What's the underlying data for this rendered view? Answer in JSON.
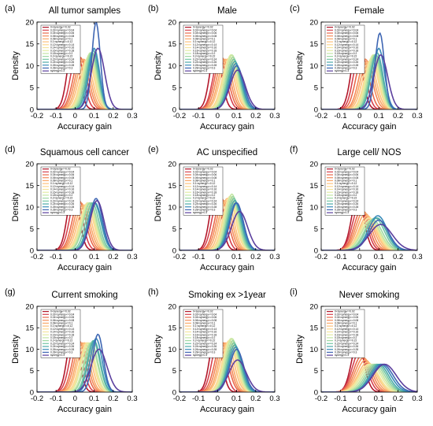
{
  "figure": {
    "background": "#ffffff"
  },
  "panel_letters": [
    "(a)",
    "(b)",
    "(c)",
    "(d)",
    "(e)",
    "(f)",
    "(g)",
    "(h)",
    "(i)"
  ],
  "legend_entries": [
    "0<synergy<=0.02",
    "0.02<synergy<=0.04",
    "0.04<synergy<=0.06",
    "0.06<synergy<=0.08",
    "0.08<synergy<=0.1",
    "0.1<synergy<=0.12",
    "0.12<synergy<=0.14",
    "0.14<synergy<=0.16",
    "0.16<synergy<=0.18",
    "0.18<synergy<=0.2",
    "0.2<synergy<=0.22",
    "0.22<synergy<=0.24",
    "0.24<synergy<=0.26",
    "0.26<synergy<=0.28",
    "0.28<synergy<=0.3",
    "synergy>0.3"
  ],
  "series_colors": [
    "#b2182b",
    "#d6404e",
    "#e96a4d",
    "#f48c5a",
    "#f9a869",
    "#fdc07b",
    "#fed790",
    "#f4e49c",
    "#e2eba3",
    "#c3e6a4",
    "#9fd8a4",
    "#74c6a5",
    "#4daaa8",
    "#3a8cba",
    "#3e66b3",
    "#5b3f9e"
  ],
  "chart_data": [
    {
      "type": "line",
      "title": "All tumor samples",
      "xlabel": "Accuracy gain",
      "ylabel": "Density",
      "xlim": [
        -0.2,
        0.3
      ],
      "ylim": [
        0,
        20
      ],
      "xticks": [
        "-0.2",
        "-0.1",
        "0",
        "0.1",
        "0.2",
        "0.3"
      ],
      "yticks": [
        "0",
        "5",
        "10",
        "15",
        "20"
      ],
      "legend": "top-left",
      "grid": false,
      "series": [
        {
          "peak_x": -0.01,
          "peak_y": 15,
          "width": 0.03
        },
        {
          "peak_x": 0.01,
          "peak_y": 13,
          "width": 0.033
        },
        {
          "peak_x": 0.025,
          "peak_y": 12,
          "width": 0.035
        },
        {
          "peak_x": 0.035,
          "peak_y": 11.5,
          "width": 0.036
        },
        {
          "peak_x": 0.045,
          "peak_y": 11.5,
          "width": 0.036
        },
        {
          "peak_x": 0.055,
          "peak_y": 11,
          "width": 0.037
        },
        {
          "peak_x": 0.065,
          "peak_y": 11.5,
          "width": 0.036
        },
        {
          "peak_x": 0.07,
          "peak_y": 12,
          "width": 0.035
        },
        {
          "peak_x": 0.075,
          "peak_y": 12.5,
          "width": 0.034
        },
        {
          "peak_x": 0.08,
          "peak_y": 13,
          "width": 0.033
        },
        {
          "peak_x": 0.085,
          "peak_y": 13,
          "width": 0.032
        },
        {
          "peak_x": 0.09,
          "peak_y": 13,
          "width": 0.031
        },
        {
          "peak_x": 0.095,
          "peak_y": 13.5,
          "width": 0.03
        },
        {
          "peak_x": 0.1,
          "peak_y": 14,
          "width": 0.028
        },
        {
          "peak_x": 0.11,
          "peak_y": 20,
          "width": 0.022
        },
        {
          "peak_x": 0.12,
          "peak_y": 14,
          "width": 0.035
        }
      ]
    },
    {
      "type": "line",
      "title": "Male",
      "xlabel": "Accuracy gain",
      "ylabel": "Density",
      "xlim": [
        -0.2,
        0.3
      ],
      "ylim": [
        0,
        20
      ],
      "xticks": [
        "-0.2",
        "-0.1",
        "0",
        "0.1",
        "0.2",
        "0.3"
      ],
      "yticks": [
        "0",
        "5",
        "10",
        "15",
        "20"
      ],
      "legend": "top-left",
      "grid": false,
      "series": [
        {
          "peak_x": -0.01,
          "peak_y": 14,
          "width": 0.03
        },
        {
          "peak_x": 0.01,
          "peak_y": 12.5,
          "width": 0.033
        },
        {
          "peak_x": 0.02,
          "peak_y": 12,
          "width": 0.035
        },
        {
          "peak_x": 0.03,
          "peak_y": 11.5,
          "width": 0.036
        },
        {
          "peak_x": 0.04,
          "peak_y": 11.5,
          "width": 0.036
        },
        {
          "peak_x": 0.05,
          "peak_y": 11.5,
          "width": 0.037
        },
        {
          "peak_x": 0.06,
          "peak_y": 11.5,
          "width": 0.036
        },
        {
          "peak_x": 0.065,
          "peak_y": 12,
          "width": 0.035
        },
        {
          "peak_x": 0.07,
          "peak_y": 12.5,
          "width": 0.034
        },
        {
          "peak_x": 0.075,
          "peak_y": 12.5,
          "width": 0.033
        },
        {
          "peak_x": 0.08,
          "peak_y": 12,
          "width": 0.033
        },
        {
          "peak_x": 0.085,
          "peak_y": 11.5,
          "width": 0.033
        },
        {
          "peak_x": 0.09,
          "peak_y": 11,
          "width": 0.034
        },
        {
          "peak_x": 0.095,
          "peak_y": 10.5,
          "width": 0.034
        },
        {
          "peak_x": 0.1,
          "peak_y": 10,
          "width": 0.036
        },
        {
          "peak_x": 0.105,
          "peak_y": 9,
          "width": 0.04
        }
      ]
    },
    {
      "type": "line",
      "title": "Female",
      "xlabel": "Accuracy gain",
      "ylabel": "Density",
      "xlim": [
        -0.2,
        0.3
      ],
      "ylim": [
        0,
        20
      ],
      "xticks": [
        "-0.2",
        "-0.1",
        "0",
        "0.1",
        "0.2",
        "0.3"
      ],
      "yticks": [
        "0",
        "5",
        "10",
        "15",
        "20"
      ],
      "legend": "top-left",
      "grid": false,
      "series": [
        {
          "peak_x": -0.015,
          "peak_y": 14,
          "width": 0.03
        },
        {
          "peak_x": 0.0,
          "peak_y": 13,
          "width": 0.032
        },
        {
          "peak_x": 0.015,
          "peak_y": 12,
          "width": 0.034
        },
        {
          "peak_x": 0.03,
          "peak_y": 11.5,
          "width": 0.035
        },
        {
          "peak_x": 0.04,
          "peak_y": 11,
          "width": 0.036
        },
        {
          "peak_x": 0.05,
          "peak_y": 11,
          "width": 0.036
        },
        {
          "peak_x": 0.06,
          "peak_y": 11.5,
          "width": 0.035
        },
        {
          "peak_x": 0.065,
          "peak_y": 12,
          "width": 0.034
        },
        {
          "peak_x": 0.07,
          "peak_y": 12.5,
          "width": 0.033
        },
        {
          "peak_x": 0.075,
          "peak_y": 12.5,
          "width": 0.033
        },
        {
          "peak_x": 0.08,
          "peak_y": 12.5,
          "width": 0.032
        },
        {
          "peak_x": 0.085,
          "peak_y": 12.5,
          "width": 0.032
        },
        {
          "peak_x": 0.09,
          "peak_y": 13,
          "width": 0.031
        },
        {
          "peak_x": 0.1,
          "peak_y": 14,
          "width": 0.029
        },
        {
          "peak_x": 0.105,
          "peak_y": 17.5,
          "width": 0.024
        },
        {
          "peak_x": 0.11,
          "peak_y": 12.5,
          "width": 0.036
        }
      ]
    },
    {
      "type": "line",
      "title": "Squamous cell cancer",
      "xlabel": "Accuracy gain",
      "ylabel": "Density",
      "xlim": [
        -0.2,
        0.3
      ],
      "ylim": [
        0,
        20
      ],
      "xticks": [
        "-0.2",
        "-0.1",
        "0",
        "0.1",
        "0.2",
        "0.3"
      ],
      "yticks": [
        "0",
        "5",
        "10",
        "15",
        "20"
      ],
      "legend": "top-left",
      "grid": false,
      "series": [
        {
          "peak_x": -0.01,
          "peak_y": 14,
          "width": 0.03
        },
        {
          "peak_x": 0.005,
          "peak_y": 12.5,
          "width": 0.033
        },
        {
          "peak_x": 0.02,
          "peak_y": 11.5,
          "width": 0.035
        },
        {
          "peak_x": 0.03,
          "peak_y": 11,
          "width": 0.036
        },
        {
          "peak_x": 0.04,
          "peak_y": 10.5,
          "width": 0.037
        },
        {
          "peak_x": 0.05,
          "peak_y": 10.5,
          "width": 0.037
        },
        {
          "peak_x": 0.06,
          "peak_y": 10.5,
          "width": 0.037
        },
        {
          "peak_x": 0.065,
          "peak_y": 11,
          "width": 0.036
        },
        {
          "peak_x": 0.07,
          "peak_y": 11,
          "width": 0.036
        },
        {
          "peak_x": 0.075,
          "peak_y": 11,
          "width": 0.036
        },
        {
          "peak_x": 0.08,
          "peak_y": 11,
          "width": 0.036
        },
        {
          "peak_x": 0.09,
          "peak_y": 11,
          "width": 0.035
        },
        {
          "peak_x": 0.1,
          "peak_y": 11,
          "width": 0.035
        },
        {
          "peak_x": 0.105,
          "peak_y": 11,
          "width": 0.034
        },
        {
          "peak_x": 0.11,
          "peak_y": 12,
          "width": 0.033
        },
        {
          "peak_x": 0.115,
          "peak_y": 11.5,
          "width": 0.036
        }
      ]
    },
    {
      "type": "line",
      "title": "AC unspecified",
      "xlabel": "Accuracy gain",
      "ylabel": "Density",
      "xlim": [
        -0.2,
        0.3
      ],
      "ylim": [
        0,
        20
      ],
      "xticks": [
        "-0.2",
        "-0.1",
        "0",
        "0.1",
        "0.2",
        "0.3"
      ],
      "yticks": [
        "0",
        "5",
        "10",
        "15",
        "20"
      ],
      "legend": "top-left",
      "grid": false,
      "series": [
        {
          "peak_x": -0.01,
          "peak_y": 14,
          "width": 0.03
        },
        {
          "peak_x": 0.005,
          "peak_y": 12.5,
          "width": 0.033
        },
        {
          "peak_x": 0.02,
          "peak_y": 12,
          "width": 0.034
        },
        {
          "peak_x": 0.03,
          "peak_y": 11.5,
          "width": 0.035
        },
        {
          "peak_x": 0.04,
          "peak_y": 11.5,
          "width": 0.035
        },
        {
          "peak_x": 0.05,
          "peak_y": 12,
          "width": 0.034
        },
        {
          "peak_x": 0.06,
          "peak_y": 12,
          "width": 0.034
        },
        {
          "peak_x": 0.065,
          "peak_y": 12.5,
          "width": 0.033
        },
        {
          "peak_x": 0.07,
          "peak_y": 12.5,
          "width": 0.033
        },
        {
          "peak_x": 0.075,
          "peak_y": 13,
          "width": 0.032
        },
        {
          "peak_x": 0.08,
          "peak_y": 12.5,
          "width": 0.032
        },
        {
          "peak_x": 0.085,
          "peak_y": 12,
          "width": 0.033
        },
        {
          "peak_x": 0.09,
          "peak_y": 11.5,
          "width": 0.034
        },
        {
          "peak_x": 0.095,
          "peak_y": 11,
          "width": 0.035
        },
        {
          "peak_x": 0.1,
          "peak_y": 11,
          "width": 0.035
        },
        {
          "peak_x": 0.115,
          "peak_y": 9,
          "width": 0.042
        }
      ]
    },
    {
      "type": "line",
      "title": "Large cell/ NOS",
      "xlabel": "Accuracy gain",
      "ylabel": "Density",
      "xlim": [
        -0.2,
        0.3
      ],
      "ylim": [
        0,
        20
      ],
      "xticks": [
        "-0.2",
        "-0.1",
        "0",
        "0.1",
        "0.2",
        "0.3"
      ],
      "yticks": [
        "0",
        "5",
        "10",
        "15",
        "20"
      ],
      "legend": "top-left",
      "grid": false,
      "series": [
        {
          "peak_x": -0.01,
          "peak_y": 12.5,
          "width": 0.032
        },
        {
          "peak_x": 0.0,
          "peak_y": 10.5,
          "width": 0.036
        },
        {
          "peak_x": 0.01,
          "peak_y": 9.5,
          "width": 0.038
        },
        {
          "peak_x": 0.02,
          "peak_y": 9,
          "width": 0.04
        },
        {
          "peak_x": 0.03,
          "peak_y": 8.5,
          "width": 0.042
        },
        {
          "peak_x": 0.04,
          "peak_y": 8,
          "width": 0.043
        },
        {
          "peak_x": 0.045,
          "peak_y": 7.5,
          "width": 0.045
        },
        {
          "peak_x": 0.05,
          "peak_y": 7.5,
          "width": 0.046
        },
        {
          "peak_x": 0.055,
          "peak_y": 7,
          "width": 0.047
        },
        {
          "peak_x": 0.06,
          "peak_y": 7,
          "width": 0.048
        },
        {
          "peak_x": 0.07,
          "peak_y": 7,
          "width": 0.048
        },
        {
          "peak_x": 0.08,
          "peak_y": 7.5,
          "width": 0.048
        },
        {
          "peak_x": 0.09,
          "peak_y": 7.5,
          "width": 0.048
        },
        {
          "peak_x": 0.095,
          "peak_y": 8,
          "width": 0.048
        },
        {
          "peak_x": 0.1,
          "peak_y": 7,
          "width": 0.05
        },
        {
          "peak_x": 0.11,
          "peak_y": 6,
          "width": 0.06
        }
      ]
    },
    {
      "type": "line",
      "title": "Current smoking",
      "xlabel": "Accuracy gain",
      "ylabel": "Density",
      "xlim": [
        -0.2,
        0.3
      ],
      "ylim": [
        0,
        20
      ],
      "xticks": [
        "-0.2",
        "-0.1",
        "0",
        "0.1",
        "0.2",
        "0.3"
      ],
      "yticks": [
        "0",
        "5",
        "10",
        "15",
        "20"
      ],
      "legend": "top-left",
      "grid": false,
      "series": [
        {
          "peak_x": -0.01,
          "peak_y": 14.5,
          "width": 0.03
        },
        {
          "peak_x": 0.005,
          "peak_y": 12.5,
          "width": 0.033
        },
        {
          "peak_x": 0.02,
          "peak_y": 12,
          "width": 0.034
        },
        {
          "peak_x": 0.03,
          "peak_y": 11.5,
          "width": 0.035
        },
        {
          "peak_x": 0.04,
          "peak_y": 11.5,
          "width": 0.035
        },
        {
          "peak_x": 0.05,
          "peak_y": 11.5,
          "width": 0.036
        },
        {
          "peak_x": 0.06,
          "peak_y": 11.5,
          "width": 0.036
        },
        {
          "peak_x": 0.065,
          "peak_y": 11.5,
          "width": 0.035
        },
        {
          "peak_x": 0.07,
          "peak_y": 11.5,
          "width": 0.035
        },
        {
          "peak_x": 0.08,
          "peak_y": 11.5,
          "width": 0.035
        },
        {
          "peak_x": 0.085,
          "peak_y": 11.5,
          "width": 0.034
        },
        {
          "peak_x": 0.095,
          "peak_y": 12,
          "width": 0.033
        },
        {
          "peak_x": 0.1,
          "peak_y": 12,
          "width": 0.032
        },
        {
          "peak_x": 0.11,
          "peak_y": 12.5,
          "width": 0.031
        },
        {
          "peak_x": 0.12,
          "peak_y": 13.5,
          "width": 0.028
        },
        {
          "peak_x": 0.125,
          "peak_y": 10,
          "width": 0.042
        }
      ]
    },
    {
      "type": "line",
      "title": "Smoking ex >1year",
      "xlabel": "Accuracy gain",
      "ylabel": "Density",
      "xlim": [
        -0.2,
        0.3
      ],
      "ylim": [
        0,
        20
      ],
      "xticks": [
        "-0.2",
        "-0.1",
        "0",
        "0.1",
        "0.2",
        "0.3"
      ],
      "yticks": [
        "0",
        "5",
        "10",
        "15",
        "20"
      ],
      "legend": "top-left",
      "grid": false,
      "series": [
        {
          "peak_x": -0.01,
          "peak_y": 14,
          "width": 0.03
        },
        {
          "peak_x": 0.005,
          "peak_y": 12.5,
          "width": 0.033
        },
        {
          "peak_x": 0.02,
          "peak_y": 11.5,
          "width": 0.035
        },
        {
          "peak_x": 0.03,
          "peak_y": 11.5,
          "width": 0.035
        },
        {
          "peak_x": 0.04,
          "peak_y": 11.5,
          "width": 0.035
        },
        {
          "peak_x": 0.05,
          "peak_y": 11.5,
          "width": 0.036
        },
        {
          "peak_x": 0.06,
          "peak_y": 12,
          "width": 0.035
        },
        {
          "peak_x": 0.065,
          "peak_y": 12,
          "width": 0.035
        },
        {
          "peak_x": 0.07,
          "peak_y": 12.5,
          "width": 0.034
        },
        {
          "peak_x": 0.075,
          "peak_y": 12.5,
          "width": 0.034
        },
        {
          "peak_x": 0.08,
          "peak_y": 12,
          "width": 0.034
        },
        {
          "peak_x": 0.085,
          "peak_y": 11.5,
          "width": 0.034
        },
        {
          "peak_x": 0.09,
          "peak_y": 11,
          "width": 0.035
        },
        {
          "peak_x": 0.095,
          "peak_y": 10.5,
          "width": 0.036
        },
        {
          "peak_x": 0.1,
          "peak_y": 10,
          "width": 0.037
        },
        {
          "peak_x": 0.105,
          "peak_y": 7.5,
          "width": 0.045
        }
      ]
    },
    {
      "type": "line",
      "title": "Never smoking",
      "xlabel": "Accuracy gain",
      "ylabel": "Density",
      "xlim": [
        -0.2,
        0.3
      ],
      "ylim": [
        0,
        20
      ],
      "xticks": [
        "-0.2",
        "-0.1",
        "0",
        "0.1",
        "0.2",
        "0.3"
      ],
      "yticks": [
        "0",
        "5",
        "10",
        "15",
        "20"
      ],
      "legend": "top-left",
      "grid": false,
      "series": [
        {
          "peak_x": -0.01,
          "peak_y": 11.5,
          "width": 0.033
        },
        {
          "peak_x": 0.0,
          "peak_y": 9.5,
          "width": 0.038
        },
        {
          "peak_x": 0.01,
          "peak_y": 8.5,
          "width": 0.041
        },
        {
          "peak_x": 0.02,
          "peak_y": 8,
          "width": 0.043
        },
        {
          "peak_x": 0.03,
          "peak_y": 7.5,
          "width": 0.045
        },
        {
          "peak_x": 0.04,
          "peak_y": 7,
          "width": 0.047
        },
        {
          "peak_x": 0.045,
          "peak_y": 6.5,
          "width": 0.048
        },
        {
          "peak_x": 0.05,
          "peak_y": 6.5,
          "width": 0.049
        },
        {
          "peak_x": 0.06,
          "peak_y": 6.5,
          "width": 0.05
        },
        {
          "peak_x": 0.07,
          "peak_y": 6.5,
          "width": 0.05
        },
        {
          "peak_x": 0.08,
          "peak_y": 6.5,
          "width": 0.05
        },
        {
          "peak_x": 0.09,
          "peak_y": 6.5,
          "width": 0.05
        },
        {
          "peak_x": 0.1,
          "peak_y": 6.5,
          "width": 0.05
        },
        {
          "peak_x": 0.11,
          "peak_y": 6.5,
          "width": 0.052
        },
        {
          "peak_x": 0.12,
          "peak_y": 6.5,
          "width": 0.054
        },
        {
          "peak_x": 0.13,
          "peak_y": 6.5,
          "width": 0.06
        }
      ]
    }
  ]
}
